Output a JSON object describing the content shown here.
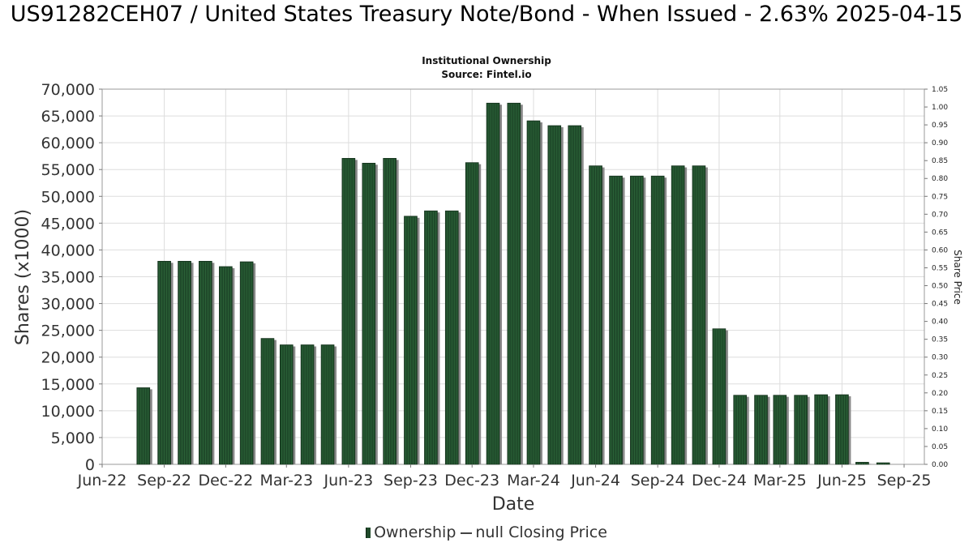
{
  "title": "US91282CEH07 / United States Treasury Note/Bond - When Issued - 2.63% 2025-04-15",
  "subtitle": "Institutional Ownership",
  "source": "Source: Fintel.io",
  "legend": {
    "ownership": "Ownership",
    "price": "null Closing Price"
  },
  "colors": {
    "bar": "#1f4a2a",
    "bar_shadow": "#8a8a8a",
    "grid": "#dddddd",
    "plot_border": "#999999"
  },
  "chart_data": {
    "type": "bar",
    "title": "US91282CEH07 / United States Treasury Note/Bond - When Issued - 2.63% 2025-04-15",
    "subtitle": "Institutional Ownership",
    "xlabel": "Date",
    "ylabel": "Shares (x1000)",
    "y2label": "Share Price",
    "ylim": [
      0,
      70000
    ],
    "y2lim": [
      0.0,
      1.05
    ],
    "grid": true,
    "legend_position": "bottom",
    "xlim": [
      "2022-06-01",
      "2025-10-01"
    ],
    "x_ticks": [
      {
        "date": "2022-06-01",
        "label": "Jun-22"
      },
      {
        "date": "2022-09-01",
        "label": "Sep-22"
      },
      {
        "date": "2022-12-01",
        "label": "Dec-22"
      },
      {
        "date": "2023-03-01",
        "label": "Mar-23"
      },
      {
        "date": "2023-06-01",
        "label": "Jun-23"
      },
      {
        "date": "2023-09-01",
        "label": "Sep-23"
      },
      {
        "date": "2023-12-01",
        "label": "Dec-23"
      },
      {
        "date": "2024-03-01",
        "label": "Mar-24"
      },
      {
        "date": "2024-06-01",
        "label": "Jun-24"
      },
      {
        "date": "2024-09-01",
        "label": "Sep-24"
      },
      {
        "date": "2024-12-01",
        "label": "Dec-24"
      },
      {
        "date": "2025-03-01",
        "label": "Mar-25"
      },
      {
        "date": "2025-06-01",
        "label": "Jun-25"
      },
      {
        "date": "2025-09-01",
        "label": "Sep-25"
      }
    ],
    "y_ticks": [
      "0",
      "5,000",
      "10,000",
      "15,000",
      "20,000",
      "25,000",
      "30,000",
      "35,000",
      "40,000",
      "45,000",
      "50,000",
      "55,000",
      "60,000",
      "65,000",
      "70,000"
    ],
    "y2_ticks": [
      "0.00",
      "0.05",
      "0.10",
      "0.15",
      "0.20",
      "0.25",
      "0.30",
      "0.35",
      "0.40",
      "0.45",
      "0.50",
      "0.55",
      "0.60",
      "0.65",
      "0.70",
      "0.75",
      "0.80",
      "0.85",
      "0.90",
      "0.95",
      "1.00",
      "1.05"
    ],
    "series": [
      {
        "name": "Ownership",
        "points": [
          {
            "date": "2022-08-01",
            "value": 14300
          },
          {
            "date": "2022-09-01",
            "value": 37900
          },
          {
            "date": "2022-10-01",
            "value": 37900
          },
          {
            "date": "2022-11-01",
            "value": 37900
          },
          {
            "date": "2022-12-01",
            "value": 36900
          },
          {
            "date": "2023-01-01",
            "value": 37800
          },
          {
            "date": "2023-02-01",
            "value": 23500
          },
          {
            "date": "2023-03-01",
            "value": 22300
          },
          {
            "date": "2023-04-01",
            "value": 22300
          },
          {
            "date": "2023-05-01",
            "value": 22300
          },
          {
            "date": "2023-06-01",
            "value": 57100
          },
          {
            "date": "2023-07-01",
            "value": 56200
          },
          {
            "date": "2023-08-01",
            "value": 57100
          },
          {
            "date": "2023-09-01",
            "value": 46300
          },
          {
            "date": "2023-10-01",
            "value": 47300
          },
          {
            "date": "2023-11-01",
            "value": 47300
          },
          {
            "date": "2023-12-01",
            "value": 56300
          },
          {
            "date": "2024-01-01",
            "value": 67400
          },
          {
            "date": "2024-02-01",
            "value": 67400
          },
          {
            "date": "2024-03-01",
            "value": 64100
          },
          {
            "date": "2024-04-01",
            "value": 63200
          },
          {
            "date": "2024-05-01",
            "value": 63200
          },
          {
            "date": "2024-06-01",
            "value": 55700
          },
          {
            "date": "2024-07-01",
            "value": 53800
          },
          {
            "date": "2024-08-01",
            "value": 53800
          },
          {
            "date": "2024-09-01",
            "value": 53800
          },
          {
            "date": "2024-10-01",
            "value": 55700
          },
          {
            "date": "2024-11-01",
            "value": 55700
          },
          {
            "date": "2024-12-01",
            "value": 25300
          },
          {
            "date": "2025-01-01",
            "value": 12900
          },
          {
            "date": "2025-02-01",
            "value": 12900
          },
          {
            "date": "2025-03-01",
            "value": 12900
          },
          {
            "date": "2025-04-01",
            "value": 12900
          },
          {
            "date": "2025-05-01",
            "value": 13000
          },
          {
            "date": "2025-06-01",
            "value": 13000
          },
          {
            "date": "2025-07-01",
            "value": 400
          },
          {
            "date": "2025-08-01",
            "value": 300
          }
        ]
      }
    ]
  }
}
